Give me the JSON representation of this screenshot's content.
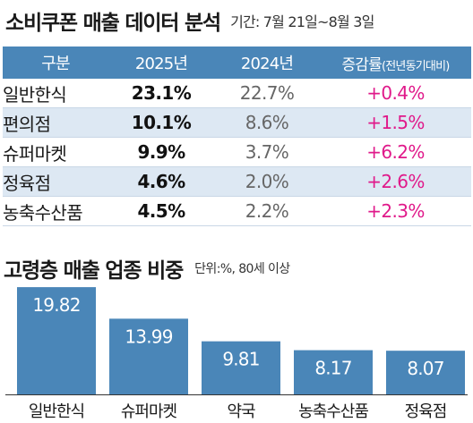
{
  "header": {
    "title": "소비쿠폰 매출 데이터 분석",
    "period": "기간: 7월 21일~8월 3일"
  },
  "table": {
    "columns": [
      "구분",
      "2025년",
      "2024년",
      "증감률"
    ],
    "change_note": "(전년동기대비)",
    "rows": [
      {
        "category": "일반한식",
        "y2025": "23.1%",
        "y2024": "22.7%",
        "change": "+0.4%"
      },
      {
        "category": "편의점",
        "y2025": "10.1%",
        "y2024": "8.6%",
        "change": "+1.5%"
      },
      {
        "category": "슈퍼마켓",
        "y2025": "9.9%",
        "y2024": "3.7%",
        "change": "+6.2%"
      },
      {
        "category": "정육점",
        "y2025": "4.6%",
        "y2024": "2.0%",
        "change": "+2.6%"
      },
      {
        "category": "농축수산품",
        "y2025": "4.5%",
        "y2024": "2.2%",
        "change": "+2.3%"
      }
    ]
  },
  "colors": {
    "header_bg": "#4a86b8",
    "row_alt_bg": "#dde8f3",
    "change_text": "#e0198a",
    "bar": "#4a86b8"
  },
  "chart_data": {
    "type": "bar",
    "title": "고령층 매출 업종 비중",
    "unit": "단위:%, 80세 이상",
    "categories": [
      "일반한식",
      "슈퍼마켓",
      "약국",
      "농축수산품",
      "정육점"
    ],
    "values": [
      19.82,
      13.99,
      9.81,
      8.17,
      8.07
    ],
    "value_labels": [
      "19.82",
      "13.99",
      "9.81",
      "8.17",
      "8.07"
    ],
    "ylim": [
      0,
      20
    ],
    "grid": false,
    "legend": "none"
  }
}
